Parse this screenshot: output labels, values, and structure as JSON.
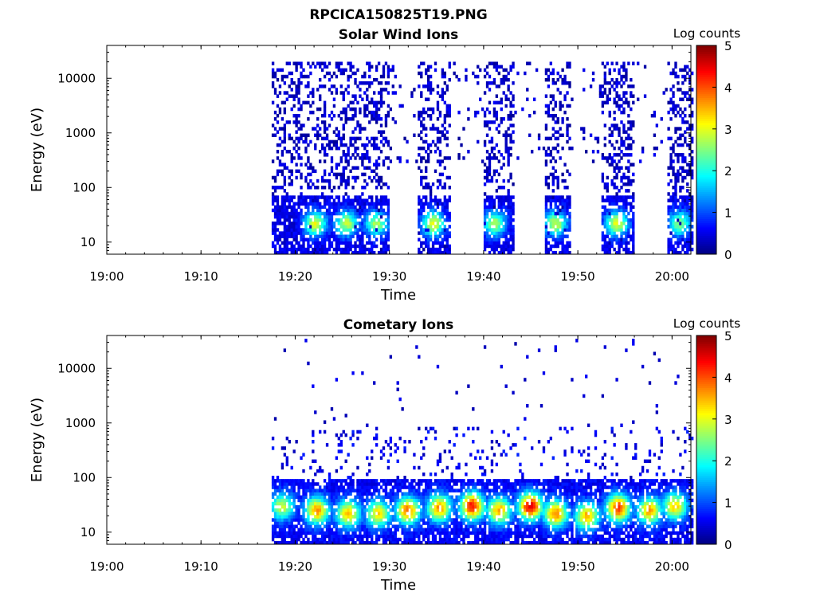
{
  "figure": {
    "title": "RPCICA150825T19.PNG"
  },
  "chart_data": [
    {
      "type": "heatmap",
      "title": "Solar Wind Ions",
      "xlabel": "Time",
      "ylabel": "Energy (eV)",
      "x_ticks": [
        "19:00",
        "19:10",
        "19:20",
        "19:30",
        "19:40",
        "19:50",
        "20:00"
      ],
      "y_ticks": [
        "10",
        "100",
        "1000",
        "10000"
      ],
      "y_scale": "log",
      "y_range": [
        6,
        40000
      ],
      "x_range": [
        "19:00",
        "20:02"
      ],
      "colorbar": {
        "label": "Log counts",
        "ticks": [
          "0",
          "1",
          "2",
          "3",
          "4",
          "5"
        ],
        "range": [
          0,
          5
        ],
        "colormap": "jet"
      },
      "data_start": "19:17:30",
      "data_end": "20:02:15",
      "bursts": [
        {
          "start": "19:17:30",
          "end": "19:29:45",
          "high_energy_max": 20000
        },
        {
          "start": "19:33:00",
          "end": "19:36:15",
          "high_energy_max": 20000
        },
        {
          "start": "19:39:50",
          "end": "19:43:00",
          "high_energy_max": 20000
        },
        {
          "start": "19:46:20",
          "end": "19:49:10",
          "high_energy_max": 20000
        },
        {
          "start": "19:52:30",
          "end": "19:55:50",
          "high_energy_max": 20000
        },
        {
          "start": "19:59:20",
          "end": "20:02:15",
          "high_energy_max": 20000
        }
      ],
      "low_energy_peaks": [
        {
          "time": "19:22:00",
          "energy": 22,
          "log_counts": 2.5
        },
        {
          "time": "19:25:20",
          "energy": 22,
          "log_counts": 2.3
        },
        {
          "time": "19:28:30",
          "energy": 22,
          "log_counts": 2.2
        },
        {
          "time": "19:34:30",
          "energy": 22,
          "log_counts": 2.6
        },
        {
          "time": "19:41:00",
          "energy": 22,
          "log_counts": 2.2
        },
        {
          "time": "19:47:30",
          "energy": 22,
          "log_counts": 2.4
        },
        {
          "time": "19:54:00",
          "energy": 22,
          "log_counts": 2.5
        },
        {
          "time": "20:00:40",
          "energy": 22,
          "log_counts": 2.1
        }
      ]
    },
    {
      "type": "heatmap",
      "title": "Cometary Ions",
      "xlabel": "Time",
      "ylabel": "Energy (eV)",
      "x_ticks": [
        "19:00",
        "19:10",
        "19:20",
        "19:30",
        "19:40",
        "19:50",
        "20:00"
      ],
      "y_ticks": [
        "10",
        "100",
        "1000",
        "10000"
      ],
      "y_scale": "log",
      "y_range": [
        6,
        40000
      ],
      "x_range": [
        "19:00",
        "20:02"
      ],
      "colorbar": {
        "label": "Log counts",
        "ticks": [
          "0",
          "1",
          "2",
          "3",
          "4",
          "5"
        ],
        "range": [
          0,
          5
        ],
        "colormap": "jet"
      },
      "data_start": "19:17:30",
      "data_end": "20:02:15",
      "peaks": [
        {
          "time": "19:18:30",
          "energy": 30,
          "log_counts": 2.3
        },
        {
          "time": "19:22:10",
          "energy": 25,
          "log_counts": 3.1
        },
        {
          "time": "19:25:30",
          "energy": 22,
          "log_counts": 2.9
        },
        {
          "time": "19:28:40",
          "energy": 22,
          "log_counts": 2.7
        },
        {
          "time": "19:31:50",
          "energy": 25,
          "log_counts": 3.3
        },
        {
          "time": "19:35:10",
          "energy": 28,
          "log_counts": 3.1
        },
        {
          "time": "19:38:40",
          "energy": 30,
          "log_counts": 3.8
        },
        {
          "time": "19:41:30",
          "energy": 25,
          "log_counts": 3.0
        },
        {
          "time": "19:44:50",
          "energy": 30,
          "log_counts": 4.0
        },
        {
          "time": "19:47:30",
          "energy": 22,
          "log_counts": 3.2
        },
        {
          "time": "19:50:50",
          "energy": 20,
          "log_counts": 3.0
        },
        {
          "time": "19:54:10",
          "energy": 28,
          "log_counts": 3.6
        },
        {
          "time": "19:57:30",
          "energy": 25,
          "log_counts": 3.0
        },
        {
          "time": "20:00:10",
          "energy": 30,
          "log_counts": 2.8
        }
      ]
    }
  ]
}
